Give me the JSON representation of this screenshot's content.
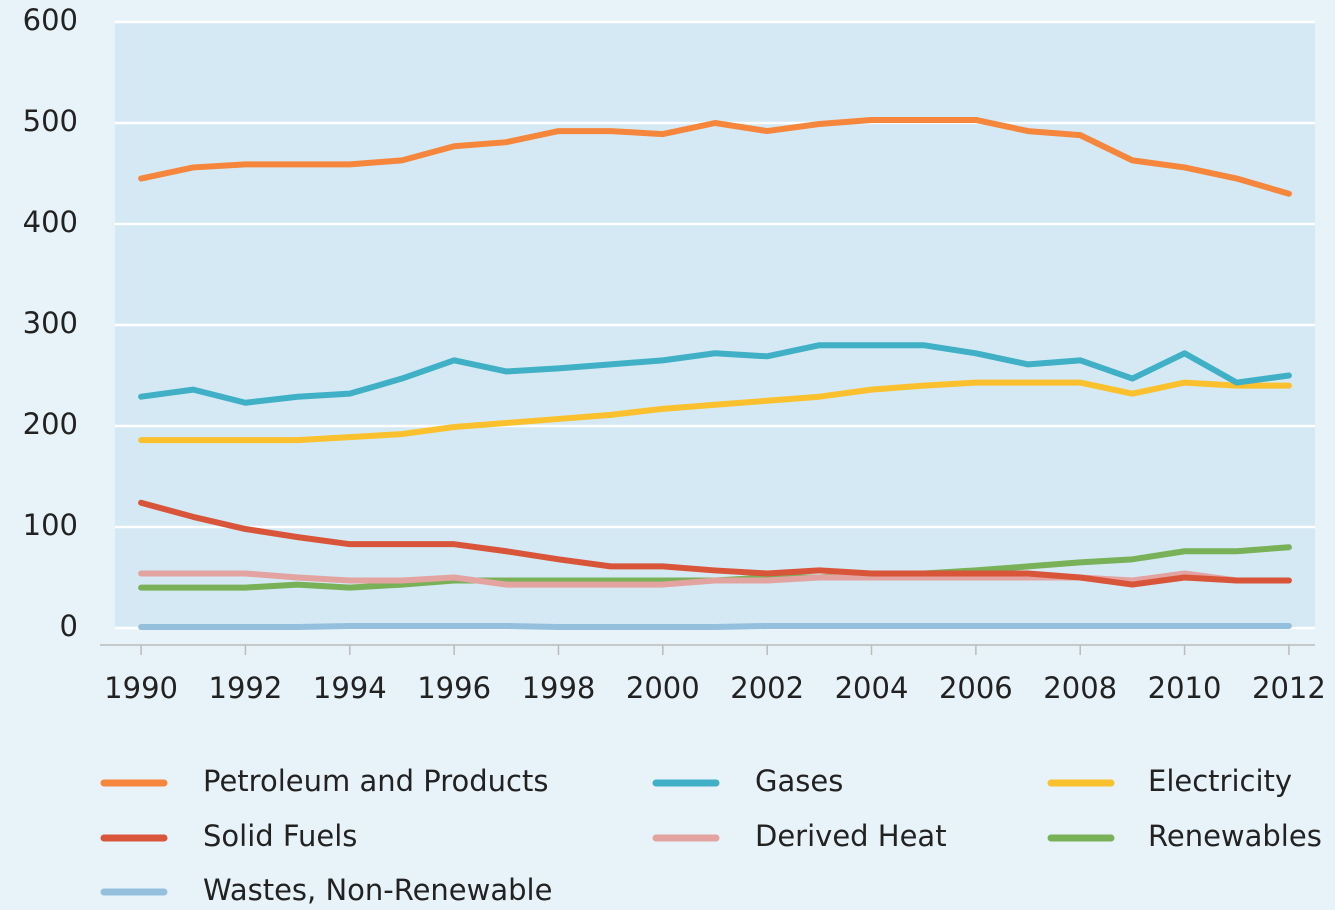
{
  "chart_data": {
    "type": "line",
    "x": [
      1990,
      1991,
      1992,
      1993,
      1994,
      1995,
      1996,
      1997,
      1998,
      1999,
      2000,
      2001,
      2002,
      2003,
      2004,
      2005,
      2006,
      2007,
      2008,
      2009,
      2010,
      2011,
      2012
    ],
    "xlim": [
      1989.5,
      2012.5
    ],
    "xticks": [
      1990,
      1992,
      1994,
      1996,
      1998,
      2000,
      2002,
      2004,
      2006,
      2008,
      2010,
      2012
    ],
    "ylim": [
      0,
      600
    ],
    "yticks": [
      0,
      100,
      200,
      300,
      400,
      500,
      600
    ],
    "grid": true,
    "legend": "bottom",
    "series": [
      {
        "name": "Petroleum and Products",
        "color": "#f5863c",
        "values": [
          445,
          456,
          459,
          459,
          459,
          463,
          477,
          481,
          492,
          492,
          489,
          500,
          492,
          499,
          503,
          503,
          503,
          492,
          488,
          463,
          456,
          445,
          430
        ]
      },
      {
        "name": "Gases",
        "color": "#3fb0c5",
        "values": [
          229,
          236,
          223,
          229,
          232,
          247,
          265,
          254,
          257,
          261,
          265,
          272,
          269,
          280,
          280,
          280,
          272,
          261,
          265,
          247,
          272,
          243,
          250
        ]
      },
      {
        "name": "Electricity",
        "color": "#fbc02d",
        "values": [
          186,
          186,
          186,
          186,
          189,
          192,
          199,
          203,
          207,
          211,
          217,
          221,
          225,
          229,
          236,
          240,
          243,
          243,
          243,
          232,
          243,
          240,
          240
        ]
      },
      {
        "name": "Solid Fuels",
        "color": "#d9553a",
        "values": [
          124,
          110,
          98,
          90,
          83,
          83,
          83,
          76,
          68,
          61,
          61,
          57,
          54,
          57,
          54,
          54,
          54,
          54,
          50,
          43,
          50,
          47,
          47
        ]
      },
      {
        "name": "Derived Heat",
        "color": "#e3a3a0",
        "values": [
          54,
          54,
          54,
          50,
          47,
          47,
          50,
          43,
          43,
          43,
          43,
          47,
          47,
          50,
          50,
          50,
          50,
          50,
          50,
          47,
          54,
          47,
          47
        ]
      },
      {
        "name": "Renewables",
        "color": "#78b157",
        "values": [
          40,
          40,
          40,
          43,
          40,
          43,
          47,
          47,
          47,
          47,
          47,
          47,
          50,
          50,
          54,
          54,
          57,
          61,
          65,
          68,
          76,
          76,
          80
        ]
      },
      {
        "name": "Wastes, Non-Renewable",
        "color": "#94c0de",
        "values": [
          1,
          1,
          1,
          1,
          2,
          2,
          2,
          2,
          1,
          1,
          1,
          1,
          2,
          2,
          2,
          2,
          2,
          2,
          2,
          2,
          2,
          2,
          2
        ]
      }
    ]
  }
}
